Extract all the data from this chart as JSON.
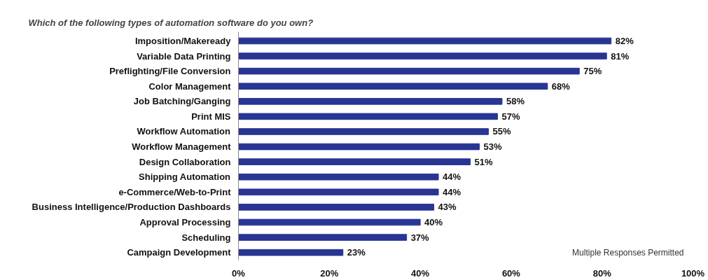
{
  "chart_data": {
    "type": "bar",
    "orientation": "horizontal",
    "title": "Which of the following types of automation software do you own?",
    "categories": [
      "Imposition/Makeready",
      "Variable Data Printing",
      "Preflighting/File Conversion",
      "Color Management",
      "Job Batching/Ganging",
      "Print MIS",
      "Workflow Automation",
      "Workflow Management",
      "Design Collaboration",
      "Shipping Automation",
      "e-Commerce/Web-to-Print",
      "Business Intelligence/Production Dashboards",
      "Approval Processing",
      "Scheduling",
      "Campaign Development"
    ],
    "values": [
      82,
      81,
      75,
      68,
      58,
      57,
      55,
      53,
      51,
      44,
      44,
      43,
      40,
      37,
      23
    ],
    "color": "#283593",
    "value_labels": [
      "82%",
      "81%",
      "75%",
      "68%",
      "58%",
      "57%",
      "55%",
      "53%",
      "51%",
      "44%",
      "44%",
      "43%",
      "40%",
      "37%",
      "23%"
    ],
    "xlim": [
      0,
      100
    ],
    "xticks": [
      {
        "value": 0,
        "label": "0%"
      },
      {
        "value": 20,
        "label": "20%"
      },
      {
        "value": 40,
        "label": "40%"
      },
      {
        "value": 60,
        "label": "60%"
      },
      {
        "value": 80,
        "label": "80%"
      },
      {
        "value": 100,
        "label": "100%"
      }
    ],
    "annotations": [
      "Multiple Responses Permitted"
    ]
  }
}
